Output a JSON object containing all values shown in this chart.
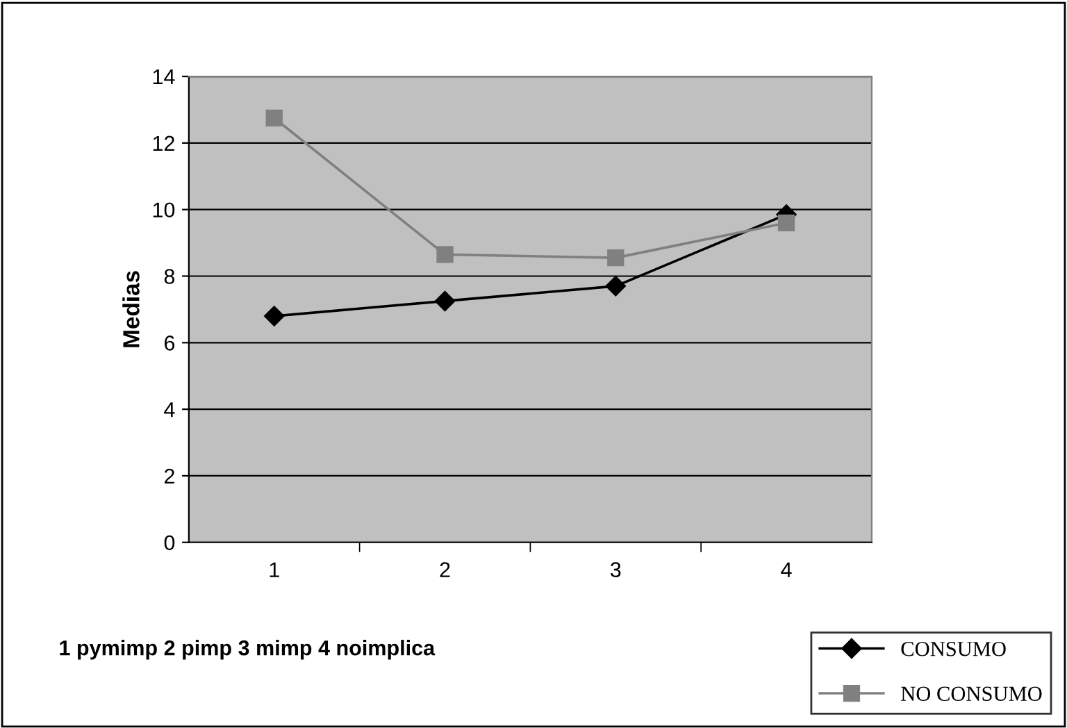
{
  "chart_data": {
    "type": "line",
    "ylabel": "Medias",
    "xlabel": "1 pymimp 2 pimp 3 mimp 4 noimplica",
    "categories": [
      "1",
      "2",
      "3",
      "4"
    ],
    "series": [
      {
        "name": "CONSUMO",
        "color": "#000000",
        "values": [
          6.8,
          7.25,
          7.7,
          9.85
        ],
        "marker": "diamond"
      },
      {
        "name": "NO CONSUMO",
        "color": "#808080",
        "values": [
          12.75,
          8.65,
          8.55,
          9.6
        ],
        "marker": "square"
      }
    ],
    "ylim": [
      0,
      14
    ],
    "yticks": [
      0,
      2,
      4,
      6,
      8,
      10,
      12,
      14
    ],
    "grid": "y",
    "legend": "bottom right"
  }
}
